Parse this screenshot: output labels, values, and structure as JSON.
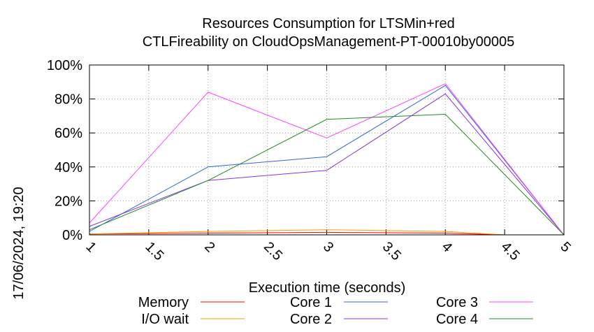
{
  "chart_data": {
    "type": "line",
    "title_line1": "Resources Consumption for LTSMin+red",
    "title_line2": "CTLFireability on CloudOpsManagement-PT-00010by00005",
    "xlabel": "Execution time (seconds)",
    "ylabel": "",
    "timestamp": "17/06/2024, 19:20",
    "xlim": [
      1,
      5
    ],
    "ylim": [
      0,
      100
    ],
    "x_ticks": [
      "1",
      "1.5",
      "2",
      "2.5",
      "3",
      "3.5",
      "4",
      "4.5",
      "5"
    ],
    "x_tick_values": [
      1,
      1.5,
      2,
      2.5,
      3,
      3.5,
      4,
      4.5,
      5
    ],
    "y_ticks": [
      "0%",
      "20%",
      "40%",
      "60%",
      "80%",
      "100%"
    ],
    "y_tick_values": [
      0,
      20,
      40,
      60,
      80,
      100
    ],
    "grid": true,
    "legend_placement": "bottom",
    "series": [
      {
        "name": "Memory",
        "color": "#ff0000",
        "x": [
          1,
          2,
          3,
          4,
          4.5
        ],
        "values": [
          0.5,
          1,
          1.5,
          1,
          0
        ]
      },
      {
        "name": "I/O wait",
        "color": "#ff9900",
        "x": [
          1,
          2,
          3,
          4,
          4.5
        ],
        "values": [
          0.5,
          2,
          3,
          2,
          0
        ]
      },
      {
        "name": "Core 1",
        "color": "#3366dd",
        "x": [
          1,
          2,
          3,
          4,
          5
        ],
        "values": [
          2,
          40,
          46,
          88,
          0
        ]
      },
      {
        "name": "Core 2",
        "color": "#8833dd",
        "x": [
          1,
          2,
          3,
          4,
          5
        ],
        "values": [
          5,
          32,
          38,
          83,
          0
        ]
      },
      {
        "name": "Core 3",
        "color": "#ff44ff",
        "x": [
          1,
          2,
          3,
          4,
          5
        ],
        "values": [
          7,
          84,
          57,
          89,
          0
        ]
      },
      {
        "name": "Core 4",
        "color": "#228822",
        "x": [
          1,
          2,
          3,
          4,
          5
        ],
        "values": [
          3,
          32,
          68,
          71,
          0
        ]
      }
    ]
  }
}
